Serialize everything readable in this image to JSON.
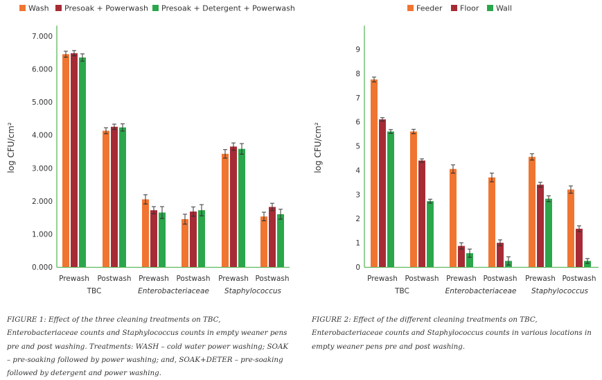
{
  "chart_data": [
    {
      "type": "bar",
      "title": "",
      "ylabel": "log CFU/cm²",
      "xlabel": "",
      "ylim": [
        0,
        7
      ],
      "yticks": [
        0,
        1,
        2,
        3,
        4,
        5,
        6,
        7
      ],
      "ytick_labels": [
        "0.000",
        "1.000",
        "2.000",
        "3.000",
        "4.000",
        "5.000",
        "6.000",
        "7.000"
      ],
      "grid": false,
      "legend_position": "top",
      "categories": [
        "Prewash",
        "Postwash",
        "Prewash",
        "Postwash",
        "Prewash",
        "Postwash"
      ],
      "groups": [
        {
          "label": "TBC",
          "italic": false
        },
        {
          "label": "Enterobacteriaceae",
          "italic": true
        },
        {
          "label": "Staphylococcus",
          "italic": true
        }
      ],
      "series": [
        {
          "name": "Wash",
          "color": "#f07531",
          "values": [
            6.45,
            4.13,
            2.05,
            1.45,
            3.43,
            1.53
          ],
          "errors": [
            0.09,
            0.09,
            0.14,
            0.15,
            0.13,
            0.13
          ]
        },
        {
          "name": "Presoak + Powerwash",
          "color": "#a62b35",
          "values": [
            6.48,
            4.25,
            1.72,
            1.68,
            3.65,
            1.82
          ],
          "errors": [
            0.08,
            0.08,
            0.11,
            0.14,
            0.11,
            0.11
          ]
        },
        {
          "name": "Presoak + Detergent + Powerwash",
          "color": "#2ba64b",
          "values": [
            6.35,
            4.23,
            1.65,
            1.72,
            3.58,
            1.6
          ],
          "errors": [
            0.11,
            0.11,
            0.18,
            0.17,
            0.16,
            0.15
          ]
        }
      ]
    },
    {
      "type": "bar",
      "title": "",
      "ylabel": "log CFU/cm²",
      "xlabel": "",
      "ylim": [
        0,
        10
      ],
      "yticks": [
        0,
        1,
        2,
        3,
        4,
        5,
        6,
        7,
        8,
        9
      ],
      "ytick_labels": [
        "0",
        "1",
        "2",
        "3",
        "4",
        "5",
        "6",
        "7",
        "8",
        "9"
      ],
      "grid": false,
      "legend_position": "top",
      "categories": [
        "Prewash",
        "Postwash",
        "Prewash",
        "Postwash",
        "Prewash",
        "Postwash"
      ],
      "groups": [
        {
          "label": "TBC",
          "italic": false
        },
        {
          "label": "Enterobacteriaceae",
          "italic": true
        },
        {
          "label": "Staphylococcus",
          "italic": true
        }
      ],
      "series": [
        {
          "name": "Feeder",
          "color": "#f07531",
          "values": [
            7.75,
            5.6,
            4.05,
            3.7,
            4.55,
            3.2
          ],
          "errors": [
            0.1,
            0.09,
            0.17,
            0.18,
            0.13,
            0.15
          ]
        },
        {
          "name": "Floor",
          "color": "#a62b35",
          "values": [
            6.1,
            4.4,
            0.87,
            1.0,
            3.4,
            1.58
          ],
          "errors": [
            0.07,
            0.07,
            0.13,
            0.12,
            0.1,
            0.12
          ]
        },
        {
          "name": "Wall",
          "color": "#2ba64b",
          "values": [
            5.6,
            2.72,
            0.57,
            0.25,
            2.82,
            0.25
          ],
          "errors": [
            0.08,
            0.08,
            0.17,
            0.17,
            0.12,
            0.1
          ]
        }
      ]
    }
  ],
  "captions": {
    "figure1": {
      "label": "FIGURE 1:",
      "text": "Effect of the three cleaning treatments on TBC, Enterobacteriaceae counts and Staphylococcus counts in empty weaner pens pre and post washing. Treatments: WASH – cold water power washing; SOAK – pre-soaking followed by power washing; and, SOAK+DETER – pre-soaking followed by detergent and power washing."
    },
    "figure2": {
      "label": "FIGURE 2:",
      "text": "Effect of the different cleaning treatments on TBC, Enterobacteriaceae counts and Staphylococcus counts in various locations in empty weaner pens pre and post washing."
    }
  }
}
